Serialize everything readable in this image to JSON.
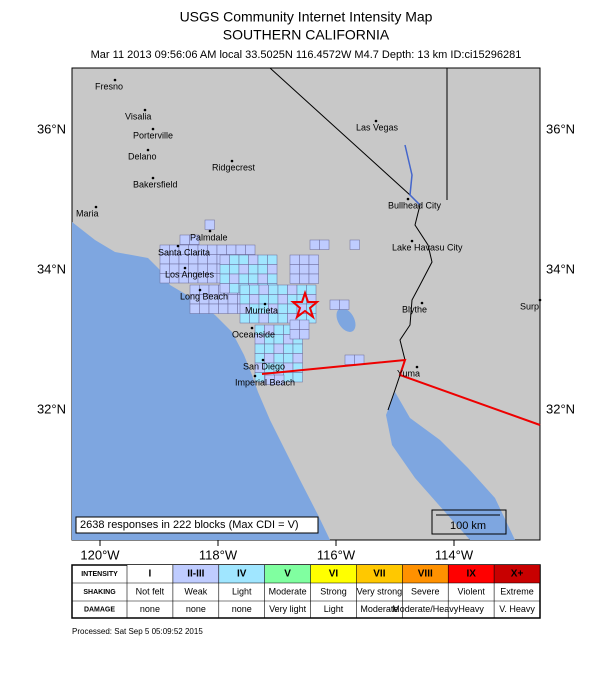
{
  "header": {
    "title": "USGS Community Internet Intensity Map",
    "subtitle": "SOUTHERN CALIFORNIA",
    "info": "Mar 11 2013 09:56:06 AM local 33.5025N 116.4572W M4.7 Depth: 13 km ID:ci15296281"
  },
  "map": {
    "lat_labels": [
      "36°N",
      "34°N",
      "32°N"
    ],
    "lon_labels": [
      "120°W",
      "118°W",
      "116°W",
      "114°W"
    ],
    "cities": [
      "Fresno",
      "Visalia",
      "Porterville",
      "Delano",
      "Bakersfield",
      "Ridgecrest",
      "Maria",
      "Palmdale",
      "Santa Clarita",
      "Los Angeles",
      "Long Beach",
      "Murrieta",
      "Oceanside",
      "San Diego",
      "Imperial Beach",
      "Las Vegas",
      "Bullhead City",
      "Lake Havasu City",
      "Blythe",
      "Yuma",
      "Surp"
    ],
    "summary": "2638 responses in 222 blocks (Max CDI = V)",
    "scale": "100 km"
  },
  "legend": {
    "headers": [
      "INTENSITY",
      "SHAKING",
      "DAMAGE"
    ],
    "intensity": [
      "I",
      "II-III",
      "IV",
      "V",
      "VI",
      "VII",
      "VIII",
      "IX",
      "X+"
    ],
    "shaking": [
      "Not felt",
      "Weak",
      "Light",
      "Moderate",
      "Strong",
      "Very strong",
      "Severe",
      "Violent",
      "Extreme"
    ],
    "damage": [
      "none",
      "none",
      "none",
      "Very light",
      "Light",
      "Moderate",
      "Moderate/Heavy",
      "Heavy",
      "V. Heavy"
    ]
  },
  "footer": {
    "processed": "Processed: Sat Sep  5 05:09:52 2015"
  }
}
